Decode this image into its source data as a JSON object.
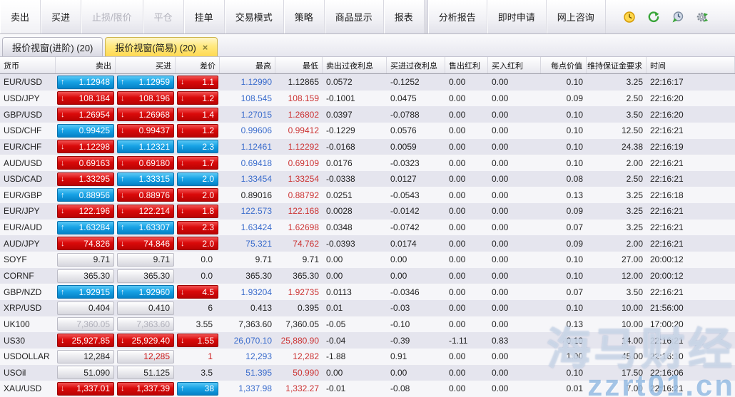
{
  "toolbar": {
    "buttons": [
      {
        "label": "卖出",
        "name": "sell-button",
        "disabled": false
      },
      {
        "label": "买进",
        "name": "buy-button",
        "disabled": false
      },
      {
        "label": "止损/限价",
        "name": "stop-limit-button",
        "disabled": true
      },
      {
        "label": "平仓",
        "name": "close-position-button",
        "disabled": true
      },
      {
        "label": "挂单",
        "name": "pending-order-button",
        "disabled": false
      },
      {
        "label": "交易模式",
        "name": "trade-mode-button",
        "disabled": false
      },
      {
        "label": "策略",
        "name": "strategy-button",
        "disabled": false
      },
      {
        "label": "商品显示",
        "name": "product-display-button",
        "disabled": false
      },
      {
        "label": "报表",
        "name": "report-button",
        "disabled": false
      },
      {
        "label": "分析报告",
        "name": "analysis-report-button",
        "disabled": false
      },
      {
        "label": "即时申请",
        "name": "instant-apply-button",
        "disabled": false
      },
      {
        "label": "网上咨询",
        "name": "online-consult-button",
        "disabled": false
      }
    ],
    "icons": [
      {
        "name": "clock-icon",
        "glyph": "yellow-clock"
      },
      {
        "name": "refresh-icon",
        "glyph": "green-circular-arrow"
      },
      {
        "name": "history-clock-icon",
        "glyph": "clock-with-arrow"
      },
      {
        "name": "sync-gear-icon",
        "glyph": "gear-with-arrows"
      }
    ]
  },
  "tabs": [
    {
      "label": "报价视窗(进阶)  (20)",
      "name": "tab-quote-advanced",
      "active": false,
      "close": ""
    },
    {
      "label": "报价视窗(简易)  (20)",
      "name": "tab-quote-simple",
      "active": true,
      "close": "×"
    }
  ],
  "table": {
    "columns": [
      "货币",
      "卖出",
      "买进",
      "差价",
      "最高",
      "最低",
      "卖出过夜利息",
      "买进过夜利息",
      "售出红利",
      "买入红利",
      "每点价值",
      "维持保证金要求",
      "时间"
    ],
    "rows": [
      {
        "currency": "EUR/USD",
        "sell": {
          "v": "1.12948",
          "s": "bu"
        },
        "buy": {
          "v": "1.12959",
          "s": "bu"
        },
        "spread": {
          "v": "1.1",
          "s": "rd"
        },
        "high": {
          "v": "1.12990",
          "c": "blue"
        },
        "low": {
          "v": "1.12865",
          "c": "black"
        },
        "sell_on": "0.0572",
        "buy_on": "-0.1252",
        "sell_div": "0.00",
        "buy_div": "0.00",
        "ppv": "0.10",
        "margin": "3.25",
        "time": "22:16:17"
      },
      {
        "currency": "USD/JPY",
        "sell": {
          "v": "108.184",
          "s": "rd"
        },
        "buy": {
          "v": "108.196",
          "s": "rd"
        },
        "spread": {
          "v": "1.2",
          "s": "rd"
        },
        "high": {
          "v": "108.545",
          "c": "blue"
        },
        "low": {
          "v": "108.159",
          "c": "red"
        },
        "sell_on": "-0.1001",
        "buy_on": "0.0475",
        "sell_div": "0.00",
        "buy_div": "0.00",
        "ppv": "0.09",
        "margin": "2.50",
        "time": "22:16:20"
      },
      {
        "currency": "GBP/USD",
        "sell": {
          "v": "1.26954",
          "s": "rd"
        },
        "buy": {
          "v": "1.26968",
          "s": "rd"
        },
        "spread": {
          "v": "1.4",
          "s": "rd"
        },
        "high": {
          "v": "1.27015",
          "c": "blue"
        },
        "low": {
          "v": "1.26802",
          "c": "red"
        },
        "sell_on": "0.0397",
        "buy_on": "-0.0788",
        "sell_div": "0.00",
        "buy_div": "0.00",
        "ppv": "0.10",
        "margin": "3.50",
        "time": "22:16:20"
      },
      {
        "currency": "USD/CHF",
        "sell": {
          "v": "0.99425",
          "s": "bu"
        },
        "buy": {
          "v": "0.99437",
          "s": "rd"
        },
        "spread": {
          "v": "1.2",
          "s": "rd"
        },
        "high": {
          "v": "0.99606",
          "c": "blue"
        },
        "low": {
          "v": "0.99412",
          "c": "red"
        },
        "sell_on": "-0.1229",
        "buy_on": "0.0576",
        "sell_div": "0.00",
        "buy_div": "0.00",
        "ppv": "0.10",
        "margin": "12.50",
        "time": "22:16:21"
      },
      {
        "currency": "EUR/CHF",
        "sell": {
          "v": "1.12298",
          "s": "rd"
        },
        "buy": {
          "v": "1.12321",
          "s": "bu"
        },
        "spread": {
          "v": "2.3",
          "s": "bu"
        },
        "high": {
          "v": "1.12461",
          "c": "blue"
        },
        "low": {
          "v": "1.12292",
          "c": "red"
        },
        "sell_on": "-0.0168",
        "buy_on": "0.0059",
        "sell_div": "0.00",
        "buy_div": "0.00",
        "ppv": "0.10",
        "margin": "24.38",
        "time": "22:16:19"
      },
      {
        "currency": "AUD/USD",
        "sell": {
          "v": "0.69163",
          "s": "rd"
        },
        "buy": {
          "v": "0.69180",
          "s": "rd"
        },
        "spread": {
          "v": "1.7",
          "s": "rd"
        },
        "high": {
          "v": "0.69418",
          "c": "blue"
        },
        "low": {
          "v": "0.69109",
          "c": "red"
        },
        "sell_on": "0.0176",
        "buy_on": "-0.0323",
        "sell_div": "0.00",
        "buy_div": "0.00",
        "ppv": "0.10",
        "margin": "2.00",
        "time": "22:16:21"
      },
      {
        "currency": "USD/CAD",
        "sell": {
          "v": "1.33295",
          "s": "rd"
        },
        "buy": {
          "v": "1.33315",
          "s": "bu"
        },
        "spread": {
          "v": "2.0",
          "s": "bu"
        },
        "high": {
          "v": "1.33454",
          "c": "blue"
        },
        "low": {
          "v": "1.33254",
          "c": "red"
        },
        "sell_on": "-0.0338",
        "buy_on": "0.0127",
        "sell_div": "0.00",
        "buy_div": "0.00",
        "ppv": "0.08",
        "margin": "2.50",
        "time": "22:16:21"
      },
      {
        "currency": "EUR/GBP",
        "sell": {
          "v": "0.88956",
          "s": "bu"
        },
        "buy": {
          "v": "0.88976",
          "s": "rd"
        },
        "spread": {
          "v": "2.0",
          "s": "rd"
        },
        "high": {
          "v": "0.89016",
          "c": "black"
        },
        "low": {
          "v": "0.88792",
          "c": "red"
        },
        "sell_on": "0.0251",
        "buy_on": "-0.0543",
        "sell_div": "0.00",
        "buy_div": "0.00",
        "ppv": "0.13",
        "margin": "3.25",
        "time": "22:16:18"
      },
      {
        "currency": "EUR/JPY",
        "sell": {
          "v": "122.196",
          "s": "rd"
        },
        "buy": {
          "v": "122.214",
          "s": "rd"
        },
        "spread": {
          "v": "1.8",
          "s": "rd"
        },
        "high": {
          "v": "122.573",
          "c": "blue"
        },
        "low": {
          "v": "122.168",
          "c": "red"
        },
        "sell_on": "0.0028",
        "buy_on": "-0.0142",
        "sell_div": "0.00",
        "buy_div": "0.00",
        "ppv": "0.09",
        "margin": "3.25",
        "time": "22:16:21"
      },
      {
        "currency": "EUR/AUD",
        "sell": {
          "v": "1.63284",
          "s": "bu"
        },
        "buy": {
          "v": "1.63307",
          "s": "bu"
        },
        "spread": {
          "v": "2.3",
          "s": "rd"
        },
        "high": {
          "v": "1.63424",
          "c": "blue"
        },
        "low": {
          "v": "1.62698",
          "c": "red"
        },
        "sell_on": "0.0348",
        "buy_on": "-0.0742",
        "sell_div": "0.00",
        "buy_div": "0.00",
        "ppv": "0.07",
        "margin": "3.25",
        "time": "22:16:21"
      },
      {
        "currency": "AUD/JPY",
        "sell": {
          "v": "74.826",
          "s": "rd"
        },
        "buy": {
          "v": "74.846",
          "s": "rd"
        },
        "spread": {
          "v": "2.0",
          "s": "rd"
        },
        "high": {
          "v": "75.321",
          "c": "blue"
        },
        "low": {
          "v": "74.762",
          "c": "red"
        },
        "sell_on": "-0.0393",
        "buy_on": "0.0174",
        "sell_div": "0.00",
        "buy_div": "0.00",
        "ppv": "0.09",
        "margin": "2.00",
        "time": "22:16:21"
      },
      {
        "currency": "SOYF",
        "sell": {
          "v": "9.71",
          "s": "n"
        },
        "buy": {
          "v": "9.71",
          "s": "n"
        },
        "spread": {
          "v": "0.0",
          "s": "p"
        },
        "high": {
          "v": "9.71",
          "c": "black"
        },
        "low": {
          "v": "9.71",
          "c": "black"
        },
        "sell_on": "0.00",
        "buy_on": "0.00",
        "sell_div": "0.00",
        "buy_div": "0.00",
        "ppv": "0.10",
        "margin": "27.00",
        "time": "20:00:12"
      },
      {
        "currency": "CORNF",
        "sell": {
          "v": "365.30",
          "s": "n"
        },
        "buy": {
          "v": "365.30",
          "s": "n"
        },
        "spread": {
          "v": "0.0",
          "s": "p"
        },
        "high": {
          "v": "365.30",
          "c": "black"
        },
        "low": {
          "v": "365.30",
          "c": "black"
        },
        "sell_on": "0.00",
        "buy_on": "0.00",
        "sell_div": "0.00",
        "buy_div": "0.00",
        "ppv": "0.10",
        "margin": "12.00",
        "time": "20:00:12"
      },
      {
        "currency": "GBP/NZD",
        "sell": {
          "v": "1.92915",
          "s": "bu"
        },
        "buy": {
          "v": "1.92960",
          "s": "bu"
        },
        "spread": {
          "v": "4.5",
          "s": "rd"
        },
        "high": {
          "v": "1.93204",
          "c": "blue"
        },
        "low": {
          "v": "1.92735",
          "c": "red"
        },
        "sell_on": "0.0113",
        "buy_on": "-0.0346",
        "sell_div": "0.00",
        "buy_div": "0.00",
        "ppv": "0.07",
        "margin": "3.50",
        "time": "22:16:21"
      },
      {
        "currency": "XRP/USD",
        "sell": {
          "v": "0.404",
          "s": "n"
        },
        "buy": {
          "v": "0.410",
          "s": "n"
        },
        "spread": {
          "v": "6",
          "s": "p"
        },
        "high": {
          "v": "0.413",
          "c": "black"
        },
        "low": {
          "v": "0.395",
          "c": "black"
        },
        "sell_on": "0.01",
        "buy_on": "-0.03",
        "sell_div": "0.00",
        "buy_div": "0.00",
        "ppv": "0.10",
        "margin": "10.00",
        "time": "21:56:00"
      },
      {
        "currency": "UK100",
        "sell": {
          "v": "7,360.05",
          "s": "ng"
        },
        "buy": {
          "v": "7,363.60",
          "s": "ng"
        },
        "spread": {
          "v": "3.55",
          "s": "p"
        },
        "high": {
          "v": "7,363.60",
          "c": "black"
        },
        "low": {
          "v": "7,360.05",
          "c": "black"
        },
        "sell_on": "-0.05",
        "buy_on": "-0.10",
        "sell_div": "0.00",
        "buy_div": "0.00",
        "ppv": "0.13",
        "margin": "10.00",
        "time": "17:00:20"
      },
      {
        "currency": "US30",
        "sell": {
          "v": "25,927.85",
          "s": "rd"
        },
        "buy": {
          "v": "25,929.40",
          "s": "rd"
        },
        "spread": {
          "v": "1.55",
          "s": "rd"
        },
        "high": {
          "v": "26,070.10",
          "c": "blue"
        },
        "low": {
          "v": "25,880.90",
          "c": "red"
        },
        "sell_on": "-0.04",
        "buy_on": "-0.39",
        "sell_div": "-1.11",
        "buy_div": "0.83",
        "ppv": "0.10",
        "margin": "14.00",
        "time": "22:16:21"
      },
      {
        "currency": "USDOLLAR",
        "sell": {
          "v": "12,284",
          "s": "n"
        },
        "buy": {
          "v": "12,285",
          "s": "nr"
        },
        "spread": {
          "v": "1",
          "s": "pr"
        },
        "high": {
          "v": "12,293",
          "c": "blue"
        },
        "low": {
          "v": "12,282",
          "c": "red"
        },
        "sell_on": "-1.88",
        "buy_on": "0.91",
        "sell_div": "0.00",
        "buy_div": "0.00",
        "ppv": "1.00",
        "margin": "45.00",
        "time": "22:16:10"
      },
      {
        "currency": "USOil",
        "sell": {
          "v": "51.090",
          "s": "n"
        },
        "buy": {
          "v": "51.125",
          "s": "n"
        },
        "spread": {
          "v": "3.5",
          "s": "p"
        },
        "high": {
          "v": "51.395",
          "c": "blue"
        },
        "low": {
          "v": "50.990",
          "c": "red"
        },
        "sell_on": "0.00",
        "buy_on": "0.00",
        "sell_div": "0.00",
        "buy_div": "0.00",
        "ppv": "0.10",
        "margin": "17.50",
        "time": "22:16:06"
      },
      {
        "currency": "XAU/USD",
        "sell": {
          "v": "1,337.01",
          "s": "rd"
        },
        "buy": {
          "v": "1,337.39",
          "s": "rd"
        },
        "spread": {
          "v": "38",
          "s": "bu"
        },
        "high": {
          "v": "1,337.98",
          "c": "blue"
        },
        "low": {
          "v": "1,332.27",
          "c": "red"
        },
        "sell_on": "-0.01",
        "buy_on": "-0.08",
        "sell_div": "0.00",
        "buy_div": "0.00",
        "ppv": "0.01",
        "margin": "7.00",
        "time": "22:16:21"
      }
    ]
  },
  "watermark": {
    "line1": "海马财经",
    "line2": "zzrt01.cn"
  },
  "colors": {
    "pill_blue": "#18a3e6",
    "pill_red": "#da0a0a",
    "tab_active": "#ffe97f",
    "text_blue": "#3a6ccc",
    "text_red": "#cc3333"
  }
}
